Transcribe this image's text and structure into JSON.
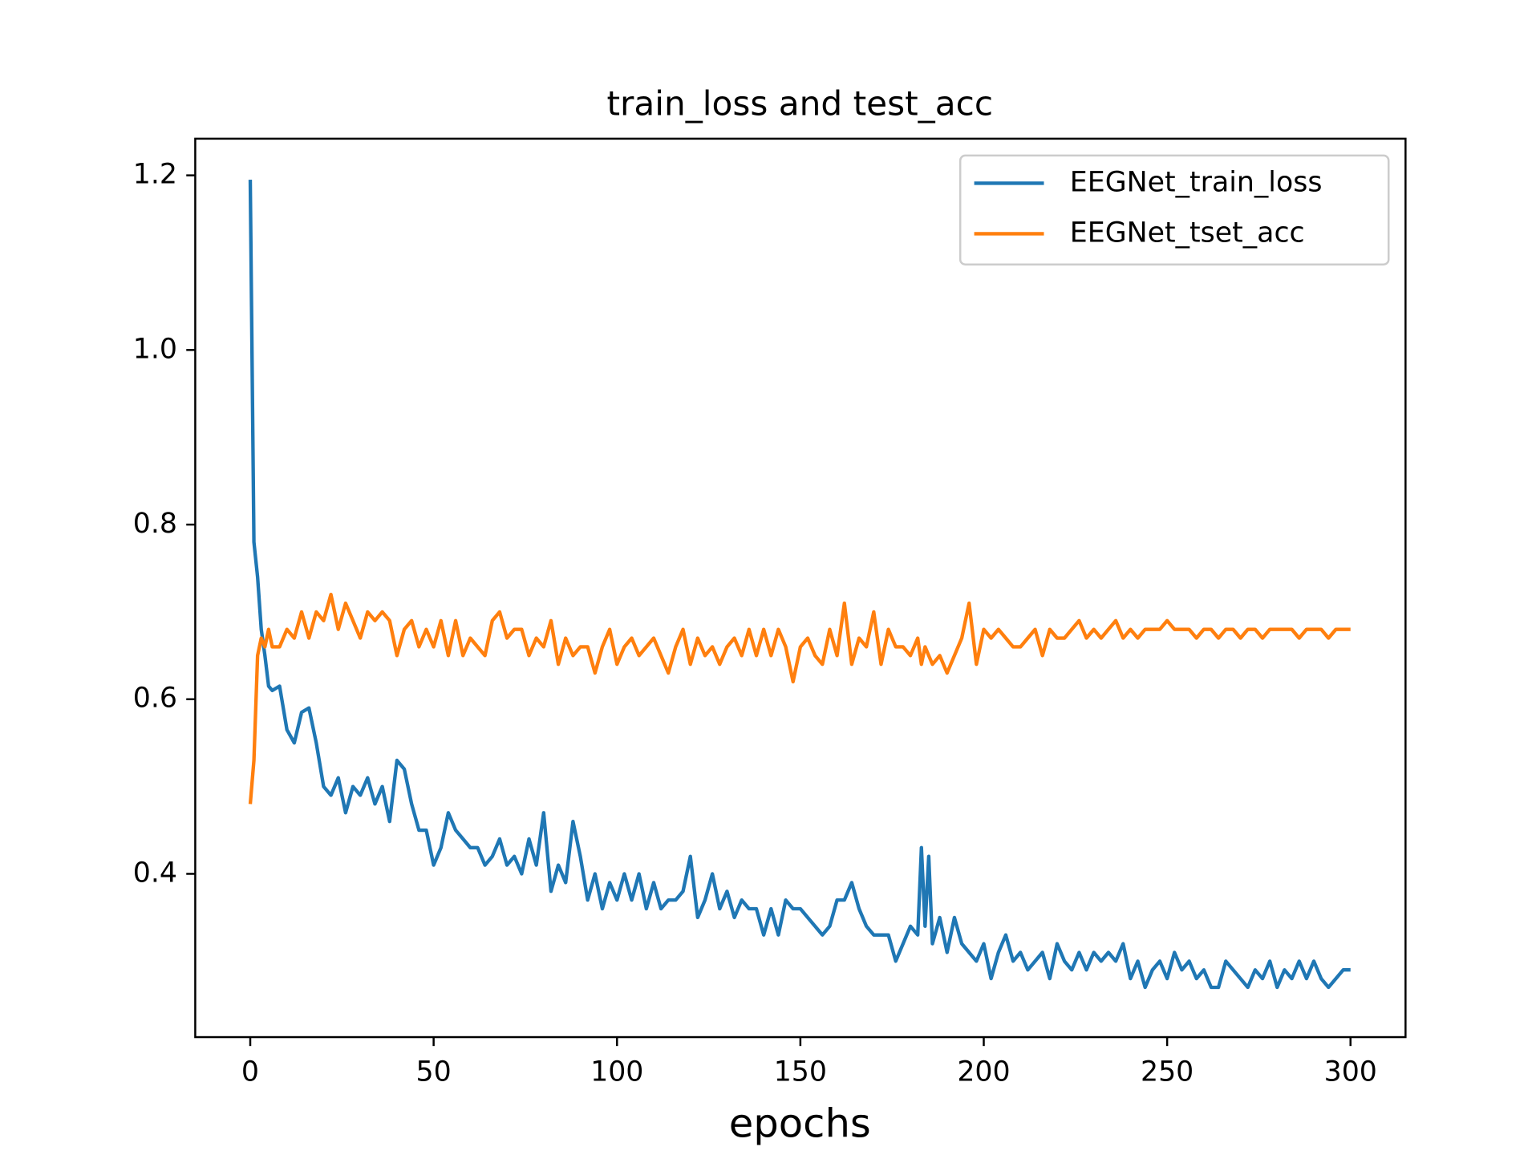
{
  "chart_data": {
    "type": "line",
    "title": "train_loss and test_acc",
    "xlabel": "epochs",
    "x": [
      0,
      1,
      2,
      3,
      4,
      5,
      6,
      8,
      10,
      12,
      14,
      16,
      18,
      20,
      22,
      24,
      26,
      28,
      30,
      32,
      34,
      36,
      38,
      40,
      42,
      44,
      46,
      48,
      50,
      52,
      54,
      56,
      58,
      60,
      62,
      64,
      66,
      68,
      70,
      72,
      74,
      76,
      78,
      80,
      82,
      84,
      86,
      88,
      90,
      92,
      94,
      96,
      98,
      100,
      102,
      104,
      106,
      108,
      110,
      112,
      114,
      116,
      118,
      120,
      122,
      124,
      126,
      128,
      130,
      132,
      134,
      136,
      138,
      140,
      142,
      144,
      146,
      148,
      150,
      152,
      154,
      156,
      158,
      160,
      162,
      164,
      166,
      168,
      170,
      172,
      174,
      176,
      178,
      180,
      182,
      183,
      184,
      185,
      186,
      188,
      190,
      192,
      194,
      196,
      198,
      200,
      202,
      204,
      206,
      208,
      210,
      212,
      214,
      216,
      218,
      220,
      222,
      224,
      226,
      228,
      230,
      232,
      234,
      236,
      238,
      240,
      242,
      244,
      246,
      248,
      250,
      252,
      254,
      256,
      258,
      260,
      262,
      264,
      266,
      268,
      270,
      272,
      274,
      276,
      278,
      280,
      282,
      284,
      286,
      288,
      290,
      292,
      294,
      296,
      298,
      300
    ],
    "series": [
      {
        "name": "EEGNet_train_loss",
        "color": "#1f77b4",
        "values": [
          1.195,
          0.78,
          0.74,
          0.68,
          0.65,
          0.615,
          0.61,
          0.615,
          0.565,
          0.55,
          0.585,
          0.59,
          0.55,
          0.5,
          0.49,
          0.51,
          0.47,
          0.5,
          0.49,
          0.51,
          0.48,
          0.5,
          0.46,
          0.53,
          0.52,
          0.48,
          0.45,
          0.45,
          0.41,
          0.43,
          0.47,
          0.45,
          0.44,
          0.43,
          0.43,
          0.41,
          0.42,
          0.44,
          0.41,
          0.42,
          0.4,
          0.44,
          0.41,
          0.47,
          0.38,
          0.41,
          0.39,
          0.46,
          0.42,
          0.37,
          0.4,
          0.36,
          0.39,
          0.37,
          0.4,
          0.37,
          0.4,
          0.36,
          0.39,
          0.36,
          0.37,
          0.37,
          0.38,
          0.42,
          0.35,
          0.37,
          0.4,
          0.36,
          0.38,
          0.35,
          0.37,
          0.36,
          0.36,
          0.33,
          0.36,
          0.33,
          0.37,
          0.36,
          0.36,
          0.35,
          0.34,
          0.33,
          0.34,
          0.37,
          0.37,
          0.39,
          0.36,
          0.34,
          0.33,
          0.33,
          0.33,
          0.3,
          0.32,
          0.34,
          0.33,
          0.43,
          0.34,
          0.42,
          0.32,
          0.35,
          0.31,
          0.35,
          0.32,
          0.31,
          0.3,
          0.32,
          0.28,
          0.31,
          0.33,
          0.3,
          0.31,
          0.29,
          0.3,
          0.31,
          0.28,
          0.32,
          0.3,
          0.29,
          0.31,
          0.29,
          0.31,
          0.3,
          0.31,
          0.3,
          0.32,
          0.28,
          0.3,
          0.27,
          0.29,
          0.3,
          0.28,
          0.31,
          0.29,
          0.3,
          0.28,
          0.29,
          0.27,
          0.27,
          0.3,
          0.29,
          0.28,
          0.27,
          0.29,
          0.28,
          0.3,
          0.27,
          0.29,
          0.28,
          0.3,
          0.28,
          0.3,
          0.28,
          0.27,
          0.28,
          0.29,
          0.29
        ]
      },
      {
        "name": "EEGNet_tset_acc",
        "color": "#ff7f0e",
        "values": [
          0.48,
          0.53,
          0.65,
          0.67,
          0.66,
          0.68,
          0.66,
          0.66,
          0.68,
          0.67,
          0.7,
          0.67,
          0.7,
          0.69,
          0.72,
          0.68,
          0.71,
          0.69,
          0.67,
          0.7,
          0.69,
          0.7,
          0.69,
          0.65,
          0.68,
          0.69,
          0.66,
          0.68,
          0.66,
          0.69,
          0.65,
          0.69,
          0.65,
          0.67,
          0.66,
          0.65,
          0.69,
          0.7,
          0.67,
          0.68,
          0.68,
          0.65,
          0.67,
          0.66,
          0.69,
          0.64,
          0.67,
          0.65,
          0.66,
          0.66,
          0.63,
          0.66,
          0.68,
          0.64,
          0.66,
          0.67,
          0.65,
          0.66,
          0.67,
          0.65,
          0.63,
          0.66,
          0.68,
          0.64,
          0.67,
          0.65,
          0.66,
          0.64,
          0.66,
          0.67,
          0.65,
          0.68,
          0.65,
          0.68,
          0.65,
          0.68,
          0.66,
          0.62,
          0.66,
          0.67,
          0.65,
          0.64,
          0.68,
          0.65,
          0.71,
          0.64,
          0.67,
          0.66,
          0.7,
          0.64,
          0.68,
          0.66,
          0.66,
          0.65,
          0.67,
          0.64,
          0.66,
          0.65,
          0.64,
          0.65,
          0.63,
          0.65,
          0.67,
          0.71,
          0.64,
          0.68,
          0.67,
          0.68,
          0.67,
          0.66,
          0.66,
          0.67,
          0.68,
          0.65,
          0.68,
          0.67,
          0.67,
          0.68,
          0.69,
          0.67,
          0.68,
          0.67,
          0.68,
          0.69,
          0.67,
          0.68,
          0.67,
          0.68,
          0.68,
          0.68,
          0.69,
          0.68,
          0.68,
          0.68,
          0.67,
          0.68,
          0.68,
          0.67,
          0.68,
          0.68,
          0.67,
          0.68,
          0.68,
          0.67,
          0.68,
          0.68,
          0.68,
          0.68,
          0.67,
          0.68,
          0.68,
          0.68,
          0.67,
          0.68,
          0.68,
          0.68
        ]
      }
    ],
    "xlim": [
      -15,
      315
    ],
    "xticks": [
      0,
      50,
      100,
      150,
      200,
      250,
      300
    ],
    "ylim": [
      0.213,
      1.242
    ],
    "yticks": [
      0.4,
      0.6,
      0.8,
      {
        "value": 1,
        "label": "1.0"
      },
      1.2
    ],
    "grid": false,
    "legend": "upper right"
  }
}
